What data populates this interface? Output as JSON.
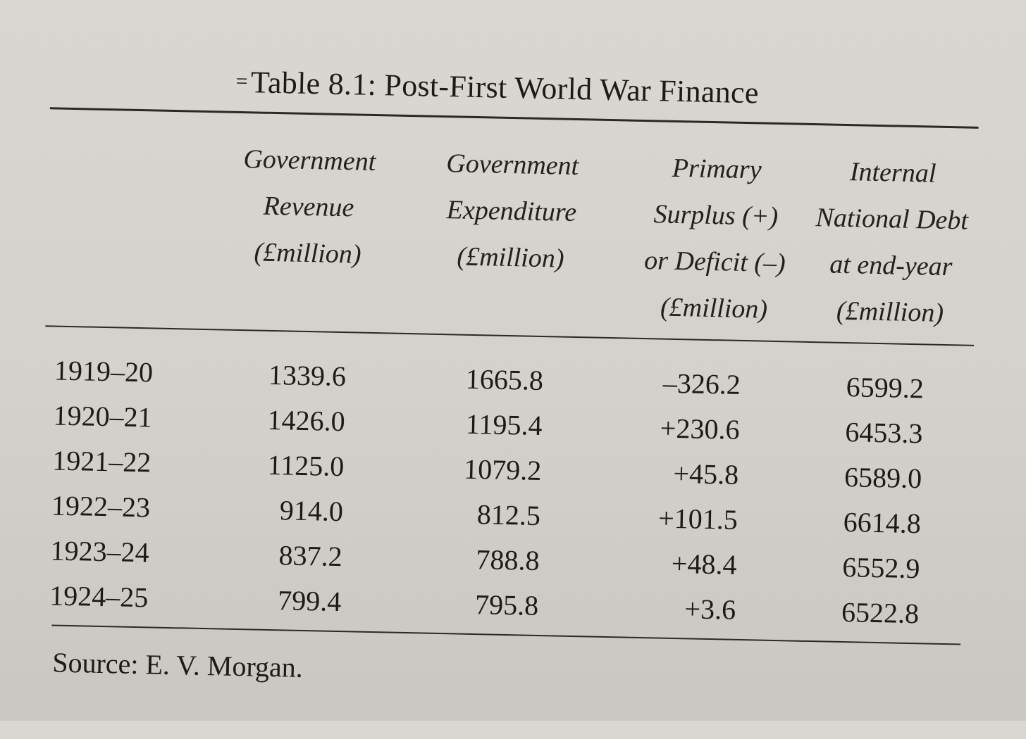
{
  "title": "Table 8.1: Post-First World War Finance",
  "title_mark": "=",
  "headers": [
    [
      "Government",
      "Revenue",
      "(£million)"
    ],
    [
      "Government",
      "Expenditure",
      "(£million)"
    ],
    [
      "Primary",
      "Surplus (+)",
      "or Deficit (–)",
      "(£million)"
    ],
    [
      "Internal",
      "National Debt",
      "at end-year",
      "(£million)"
    ]
  ],
  "rows": [
    {
      "year": "1919–20",
      "revenue": "1339.6",
      "expenditure": "1665.8",
      "balance": "–326.2",
      "debt": "6599.2"
    },
    {
      "year": "1920–21",
      "revenue": "1426.0",
      "expenditure": "1195.4",
      "balance": "+230.6",
      "debt": "6453.3"
    },
    {
      "year": "1921–22",
      "revenue": "1125.0",
      "expenditure": "1079.2",
      "balance": "+45.8",
      "debt": "6589.0"
    },
    {
      "year": "1922–23",
      "revenue": "914.0",
      "expenditure": "812.5",
      "balance": "+101.5",
      "debt": "6614.8"
    },
    {
      "year": "1923–24",
      "revenue": "837.2",
      "expenditure": "788.8",
      "balance": "+48.4",
      "debt": "6552.9"
    },
    {
      "year": "1924–25",
      "revenue": "799.4",
      "expenditure": "795.8",
      "balance": "+3.6",
      "debt": "6522.8"
    }
  ],
  "source": "Source: E. V. Morgan."
}
